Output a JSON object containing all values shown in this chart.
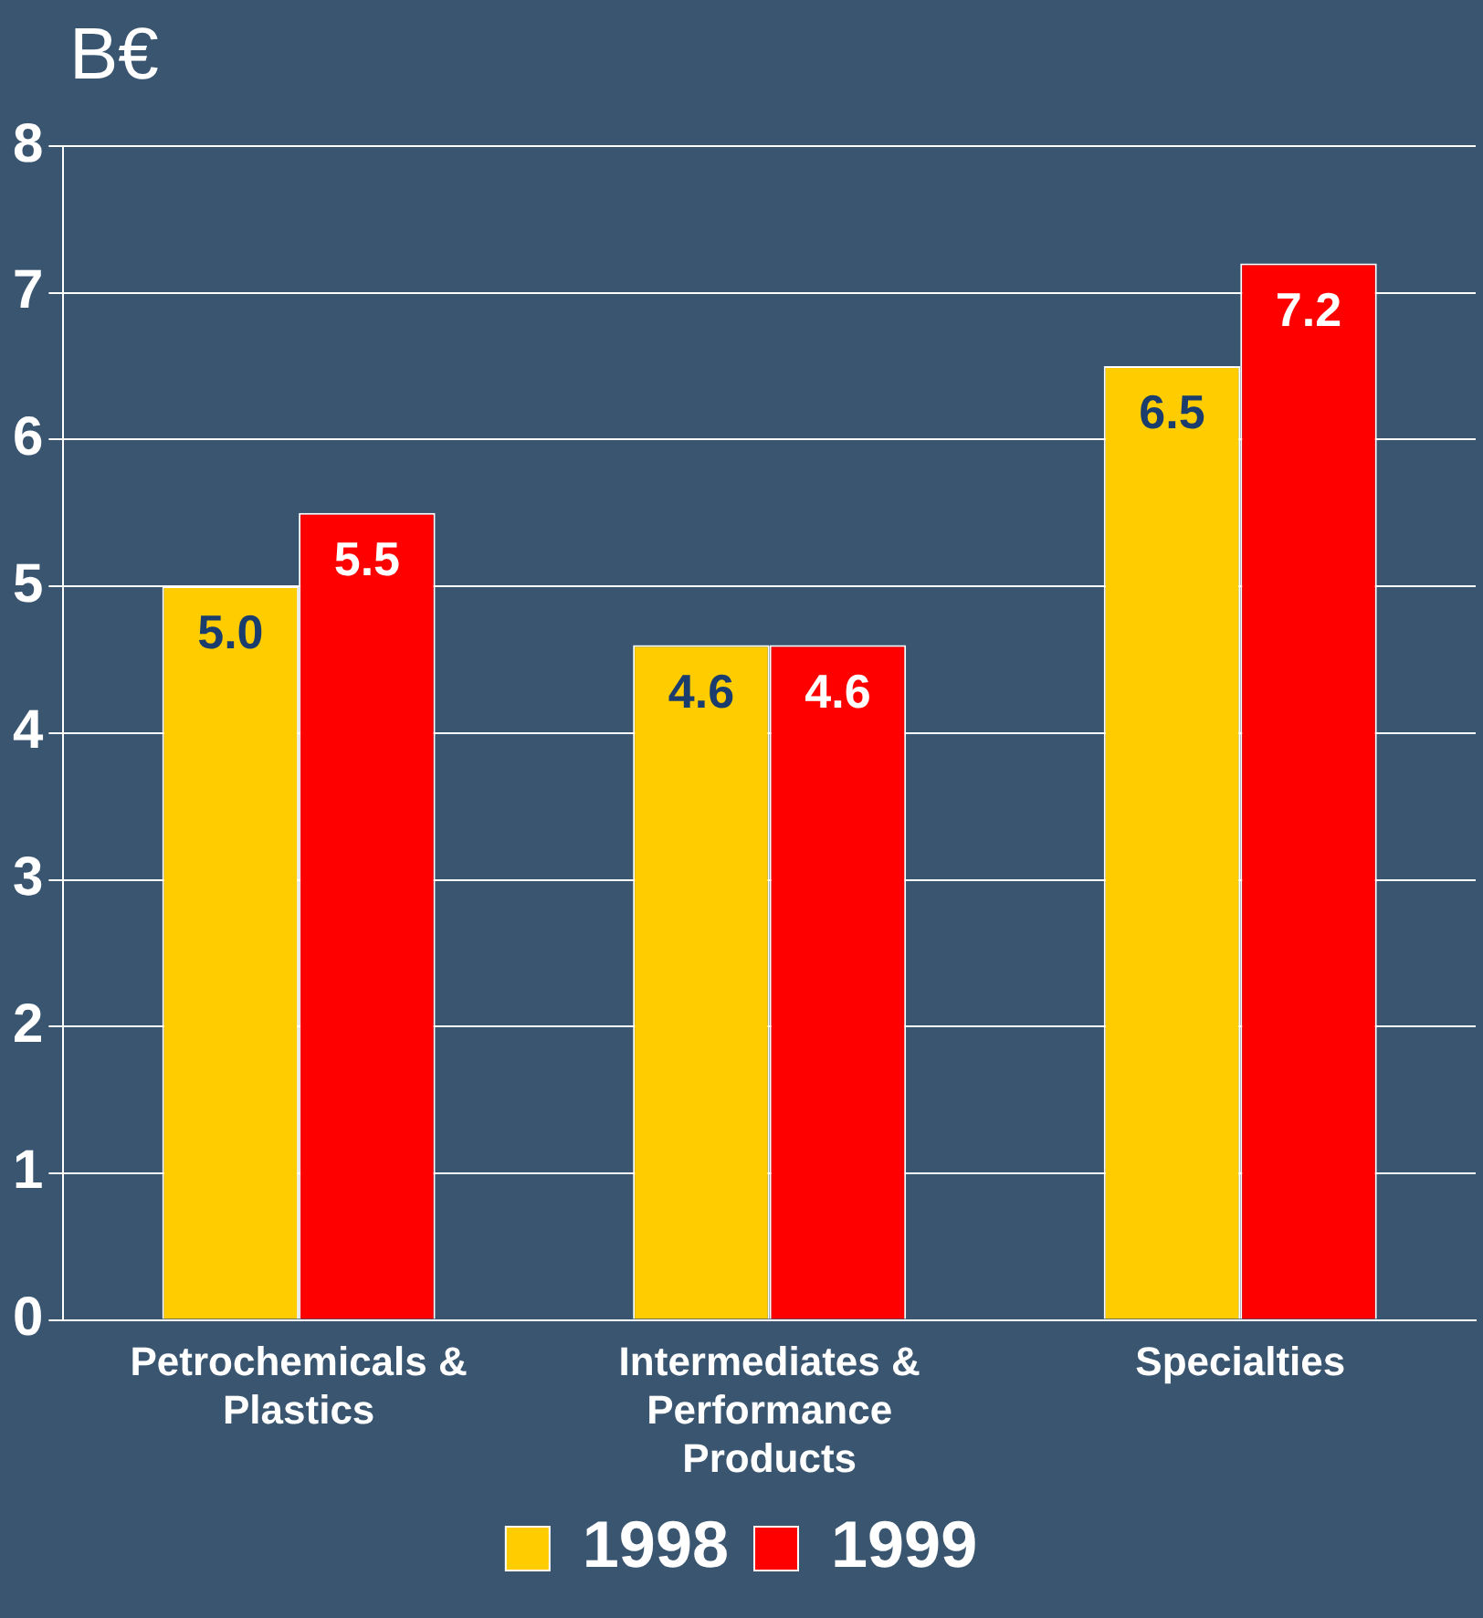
{
  "chart_data": {
    "type": "bar",
    "ylabel": "B€",
    "categories": [
      "Petrochemicals & Plastics",
      "Intermediates & Performance Products",
      "Specialties"
    ],
    "series": [
      {
        "name": "1998",
        "color": "#ffcc00",
        "values": [
          5.0,
          4.6,
          6.5
        ],
        "value_labels": [
          "5.0",
          "4.6",
          "6.5"
        ]
      },
      {
        "name": "1999",
        "color": "#ff0000",
        "values": [
          5.5,
          4.6,
          7.2
        ],
        "value_labels": [
          "5.5",
          "4.6",
          "7.2"
        ]
      }
    ],
    "ylim": [
      0,
      8
    ],
    "yticks": [
      0,
      1,
      2,
      3,
      4,
      5,
      6,
      7,
      8
    ],
    "grid": "y",
    "legend": "bottom"
  }
}
